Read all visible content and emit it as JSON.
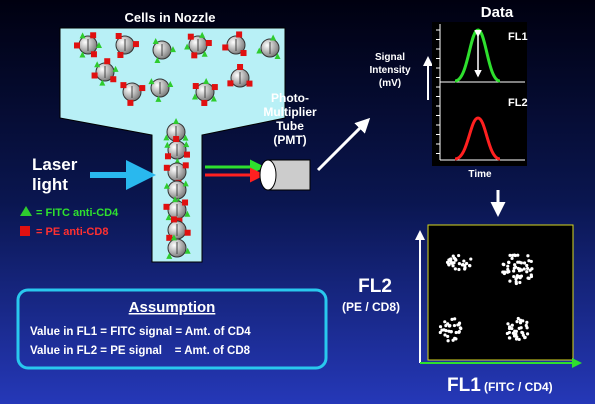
{
  "nozzle": {
    "title": "Cells in Nozzle"
  },
  "laser": {
    "label": [
      "Laser",
      "light"
    ]
  },
  "legend": [
    {
      "label": "= FITC anti-CD4"
    },
    {
      "label": "= PE anti-CD8"
    }
  ],
  "pmt": {
    "label": [
      "Photo-",
      "Multiplier",
      "Tube",
      "(PMT)"
    ]
  },
  "data_panel": {
    "title": "Data",
    "y_label": [
      "Signal",
      "Intensity",
      "(mV)"
    ],
    "x_label": "Time",
    "channels": [
      "FL1",
      "FL2"
    ]
  },
  "scatter": {
    "y_label": "FL2",
    "y_sub": "(PE / CD8)",
    "x_label": "FL1",
    "x_sub": "(FITC / CD4)"
  },
  "assumption": {
    "title": "Assumption",
    "lines": [
      "Value in FL1 = FITC signal = Amt. of CD4",
      "Value in FL2 = PE signal    = Amt. of CD8"
    ]
  }
}
